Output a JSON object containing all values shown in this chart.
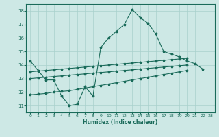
{
  "xlabel": "Humidex (Indice chaleur)",
  "xlim": [
    -0.5,
    23.5
  ],
  "ylim": [
    10.5,
    18.5
  ],
  "xticks": [
    0,
    1,
    2,
    3,
    4,
    5,
    6,
    7,
    8,
    9,
    10,
    11,
    12,
    13,
    14,
    15,
    16,
    17,
    18,
    19,
    20,
    21,
    22,
    23
  ],
  "yticks": [
    11,
    12,
    13,
    14,
    15,
    16,
    17,
    18
  ],
  "background_color": "#cde8e5",
  "grid_color": "#a8d0cc",
  "line_color": "#1a6b5a",
  "line1_y": [
    14.3,
    13.6,
    12.9,
    12.9,
    11.7,
    11.0,
    11.1,
    12.4,
    11.7,
    15.3,
    16.0,
    16.5,
    17.0,
    18.1,
    17.5,
    17.1,
    16.3,
    15.0,
    14.8,
    14.6,
    14.3,
    14.1,
    13.7,
    null
  ],
  "line2_y": [
    13.5,
    13.55,
    13.6,
    13.65,
    13.7,
    13.75,
    13.8,
    13.85,
    13.9,
    13.95,
    14.0,
    14.05,
    14.1,
    14.15,
    14.2,
    14.25,
    14.3,
    14.35,
    14.4,
    14.45,
    14.5,
    null,
    null,
    null
  ],
  "line3_y": [
    13.0,
    13.05,
    13.1,
    13.15,
    13.2,
    13.25,
    13.3,
    13.35,
    13.4,
    13.45,
    13.5,
    13.55,
    13.6,
    13.65,
    13.7,
    13.75,
    13.8,
    13.85,
    13.9,
    13.95,
    14.0,
    null,
    null,
    null
  ],
  "line4_y": [
    11.8,
    11.85,
    11.9,
    12.0,
    12.05,
    12.1,
    12.2,
    12.3,
    12.4,
    12.5,
    12.6,
    12.7,
    12.8,
    12.9,
    13.0,
    13.1,
    13.2,
    13.3,
    13.4,
    13.5,
    13.6,
    null,
    null,
    null
  ]
}
